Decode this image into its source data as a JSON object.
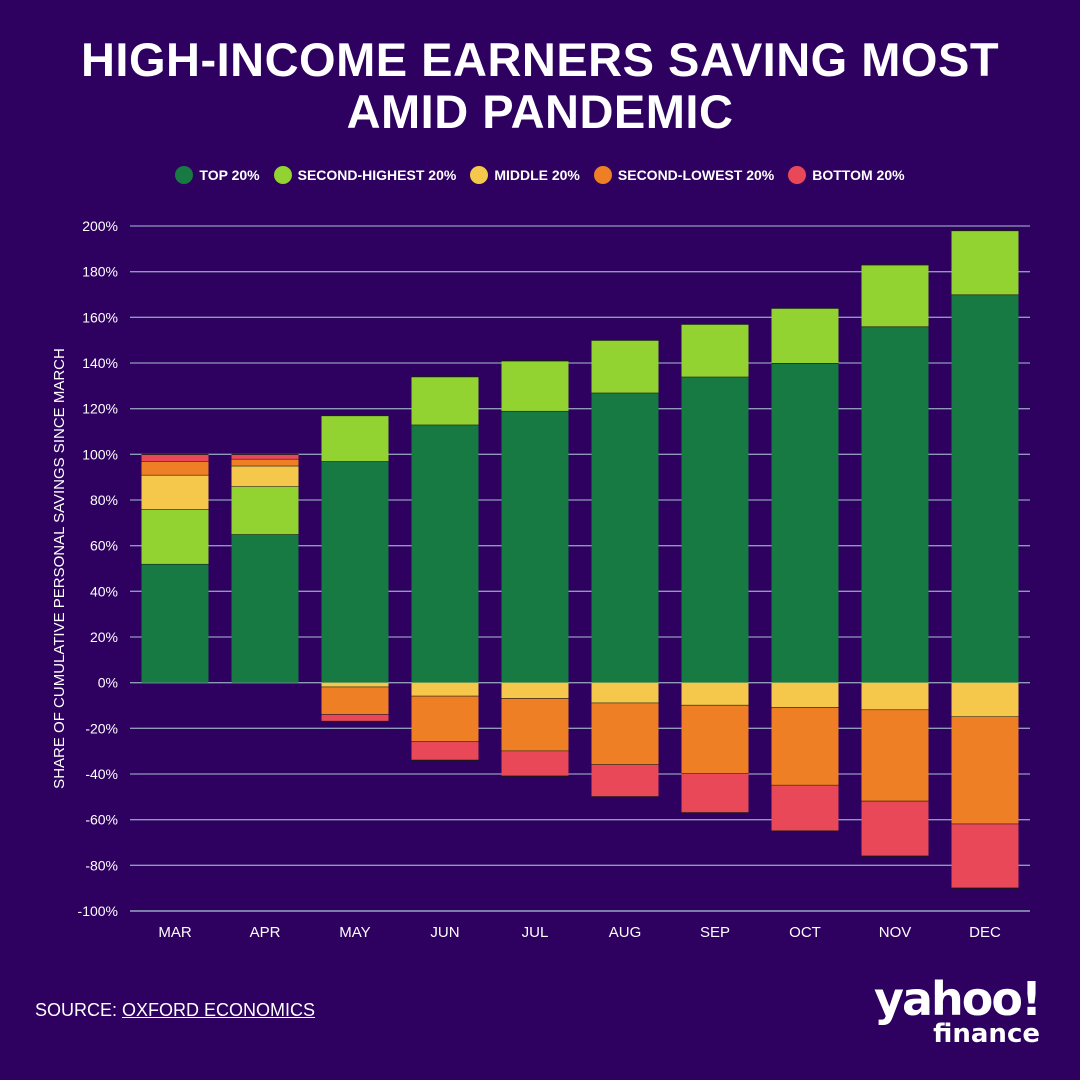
{
  "title_lines": [
    "HIGH-INCOME EARNERS SAVING MOST",
    "AMID PANDEMIC"
  ],
  "source": {
    "label": "SOURCE:",
    "link_text": "OXFORD ECONOMICS"
  },
  "logo": {
    "yahoo": "yahoo!",
    "finance": "finance"
  },
  "chart_data": {
    "type": "bar",
    "stacked": true,
    "title": "HIGH-INCOME EARNERS SAVING MOST AMID PANDEMIC",
    "xlabel": "",
    "ylabel": "SHARE OF CUMULATIVE PERSONAL SAVINGS SINCE MARCH",
    "ylim": [
      -100,
      200
    ],
    "yticks": [
      "200%",
      "180%",
      "160%",
      "140%",
      "120%",
      "100%",
      "80%",
      "60%",
      "40%",
      "20%",
      "0%",
      "-20%",
      "-40%",
      "-60%",
      "-80%",
      "-100%"
    ],
    "grid": true,
    "legend_position": "top-center",
    "categories": [
      "MAR",
      "APR",
      "MAY",
      "JUN",
      "JUL",
      "AUG",
      "SEP",
      "OCT",
      "NOV",
      "DEC"
    ],
    "series": [
      {
        "name": "TOP 20%",
        "color": "#177a42",
        "values": [
          52,
          65,
          97,
          113,
          119,
          127,
          134,
          140,
          156,
          170
        ]
      },
      {
        "name": "SECOND-HIGHEST 20%",
        "color": "#92d332",
        "values": [
          24,
          21,
          20,
          21,
          22,
          23,
          23,
          24,
          27,
          28
        ]
      },
      {
        "name": "MIDDLE 20%",
        "color": "#f5c84b",
        "values": [
          15,
          9,
          -2,
          -6,
          -7,
          -9,
          -10,
          -11,
          -12,
          -15
        ]
      },
      {
        "name": "SECOND-LOWEST 20%",
        "color": "#ef7f24",
        "values": [
          6,
          3,
          -12,
          -20,
          -23,
          -27,
          -30,
          -34,
          -40,
          -47
        ]
      },
      {
        "name": "BOTTOM 20%",
        "color": "#e84858",
        "values": [
          3,
          2,
          -3,
          -8,
          -11,
          -14,
          -17,
          -20,
          -24,
          -28
        ]
      }
    ]
  }
}
